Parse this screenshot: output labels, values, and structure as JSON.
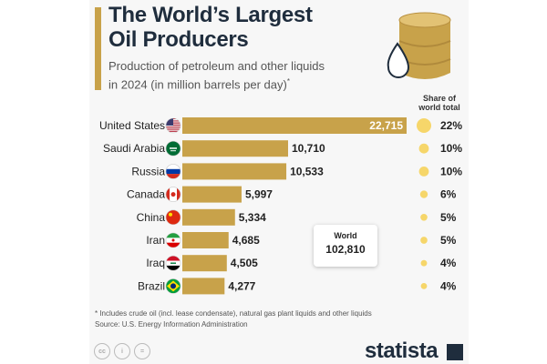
{
  "header": {
    "title_line1": "The World’s Largest",
    "title_line2": "Oil Producers",
    "subtitle_line1": "Production of petroleum and other liquids",
    "subtitle_line2": "in 2024 (in million barrels per day)",
    "subtitle_mark": "*"
  },
  "share_header": [
    "Share of",
    "world total"
  ],
  "world_box": {
    "label": "World",
    "value": "102,810"
  },
  "chart_data": {
    "type": "bar",
    "orientation": "horizontal",
    "categories": [
      "United States",
      "Saudi Arabia",
      "Russia",
      "Canada",
      "China",
      "Iran",
      "Iraq",
      "Brazil"
    ],
    "values": [
      22715,
      10710,
      10533,
      5997,
      5334,
      4685,
      4505,
      4277
    ],
    "value_labels": [
      "22,715",
      "10,710",
      "10,533",
      "5,997",
      "5,334",
      "4,685",
      "4,505",
      "4,277"
    ],
    "share_labels": [
      "22%",
      "10%",
      "10%",
      "6%",
      "5%",
      "5%",
      "4%",
      "4%"
    ],
    "share_values": [
      22,
      10,
      10,
      6,
      5,
      5,
      4,
      4
    ],
    "flag_icons": [
      "us-flag-icon",
      "saudi-arabia-flag-icon",
      "russia-flag-icon",
      "canada-flag-icon",
      "china-flag-icon",
      "iran-flag-icon",
      "iraq-flag-icon",
      "brazil-flag-icon"
    ],
    "bar_color": "#c8a24a",
    "share_dot_color": "#f6d66a"
  },
  "footnote": {
    "line1": "* Includes crude oil (incl. lease condensate), natural gas plant liquids and other liquids",
    "line2": "Source: U.S. Energy Information Administration"
  },
  "license_icons": [
    "cc-icon",
    "by-icon",
    "nd-icon"
  ],
  "brand": {
    "name": "statista"
  }
}
